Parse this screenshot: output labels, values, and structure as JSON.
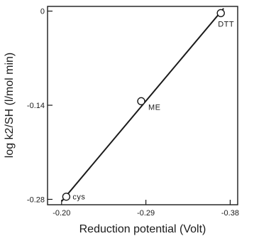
{
  "chart_data": {
    "type": "scatter",
    "xlabel": "Reduction potential (Volt)",
    "ylabel": "log k2/SH (l/mol min)",
    "xlim": [
      -0.185,
      -0.388
    ],
    "ylim": [
      -0.288,
      0.007
    ],
    "x_ticks": [
      {
        "value": -0.2,
        "label": "-0.20"
      },
      {
        "value": -0.29,
        "label": "-0.29"
      },
      {
        "value": -0.38,
        "label": "-0.38"
      }
    ],
    "y_ticks": [
      {
        "value": 0,
        "label": "0"
      },
      {
        "value": -0.14,
        "label": "-0.14"
      },
      {
        "value": -0.28,
        "label": "-0.28"
      }
    ],
    "points": [
      {
        "label": "cys",
        "x": -0.205,
        "y": -0.276
      },
      {
        "label": "ME",
        "x": -0.285,
        "y": -0.134
      },
      {
        "label": "DTT",
        "x": -0.37,
        "y": -0.003
      }
    ],
    "fit_line": {
      "x": [
        -0.2,
        -0.373
      ],
      "y": [
        -0.283,
        0.004
      ]
    },
    "grid": false,
    "legend": "none"
  }
}
